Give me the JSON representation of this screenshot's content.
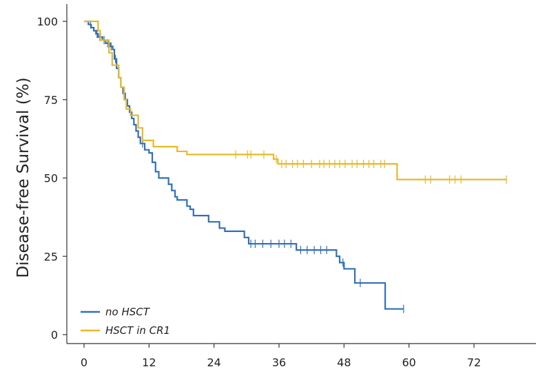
{
  "chart_data": {
    "type": "line",
    "title": "",
    "xlabel": "",
    "ylabel": "Disease-free Survival (%)",
    "xlim": [
      -2,
      79
    ],
    "ylim": [
      -3,
      104
    ],
    "x_ticks": [
      "0",
      "12",
      "24",
      "36",
      "48",
      "60",
      "72"
    ],
    "y_ticks": [
      "0",
      "25",
      "50",
      "75",
      "100"
    ],
    "grid": false,
    "legend_position": "bottom-left",
    "series": [
      {
        "name": "no HSCT",
        "color": "#2f6fba",
        "steps": [
          [
            0,
            100
          ],
          [
            0.8,
            99
          ],
          [
            1.3,
            98
          ],
          [
            1.8,
            97
          ],
          [
            2.2,
            96
          ],
          [
            2.6,
            95
          ],
          [
            3.4,
            94
          ],
          [
            4.0,
            93
          ],
          [
            4.8,
            92
          ],
          [
            5.3,
            91
          ],
          [
            5.6,
            88
          ],
          [
            6.0,
            85
          ],
          [
            6.4,
            82
          ],
          [
            6.8,
            79
          ],
          [
            7.2,
            77
          ],
          [
            7.6,
            75
          ],
          [
            8.0,
            73
          ],
          [
            8.4,
            71
          ],
          [
            8.8,
            69
          ],
          [
            9.2,
            67
          ],
          [
            9.6,
            65
          ],
          [
            10.0,
            63
          ],
          [
            10.4,
            61
          ],
          [
            11.2,
            59
          ],
          [
            12.0,
            58
          ],
          [
            12.6,
            55
          ],
          [
            13.2,
            52
          ],
          [
            13.8,
            50
          ],
          [
            15.6,
            48
          ],
          [
            16.2,
            46
          ],
          [
            16.8,
            44
          ],
          [
            17.2,
            43
          ],
          [
            19.0,
            41
          ],
          [
            19.6,
            40
          ],
          [
            20.2,
            38
          ],
          [
            23.0,
            36
          ],
          [
            25.0,
            34
          ],
          [
            26.0,
            33
          ],
          [
            29.6,
            31
          ],
          [
            30.4,
            29
          ],
          [
            39.2,
            27
          ],
          [
            46.6,
            25
          ],
          [
            47.2,
            23
          ],
          [
            48.0,
            21
          ],
          [
            50.0,
            16.5
          ],
          [
            55.6,
            8.2
          ],
          [
            59.0,
            8.2
          ]
        ],
        "censor_x": [
          1.2,
          2.4,
          2.9,
          3.7,
          4.4,
          5.0,
          5.8,
          10.8,
          30.8,
          31.6,
          33.0,
          34.5,
          36.0,
          37.0,
          38.2,
          40.0,
          41.2,
          42.5,
          43.7,
          44.8,
          47.8,
          51.0,
          59.0
        ]
      },
      {
        "name": "HSCT in CR1",
        "color": "#e8b82a",
        "steps": [
          [
            0,
            100
          ],
          [
            2.6,
            97
          ],
          [
            3.0,
            94
          ],
          [
            4.6,
            90
          ],
          [
            5.2,
            86
          ],
          [
            6.4,
            82
          ],
          [
            6.8,
            79
          ],
          [
            7.4,
            75
          ],
          [
            7.8,
            72
          ],
          [
            8.6,
            70
          ],
          [
            10.0,
            66
          ],
          [
            10.8,
            62
          ],
          [
            12.8,
            60
          ],
          [
            17.2,
            58.5
          ],
          [
            19.0,
            57.5
          ],
          [
            35.0,
            56
          ],
          [
            35.8,
            54.5
          ],
          [
            57.8,
            49.5
          ],
          [
            78.0,
            49.5
          ]
        ],
        "censor_x": [
          28.0,
          30.2,
          30.8,
          33.2,
          35.5,
          36.5,
          37.3,
          38.5,
          39.4,
          40.5,
          42.0,
          43.5,
          44.3,
          45.3,
          46.3,
          47.2,
          48.2,
          49.5,
          50.4,
          51.6,
          52.6,
          53.5,
          54.8,
          55.5,
          63.0,
          64.0,
          67.5,
          68.5,
          69.6,
          78.0
        ]
      }
    ]
  }
}
